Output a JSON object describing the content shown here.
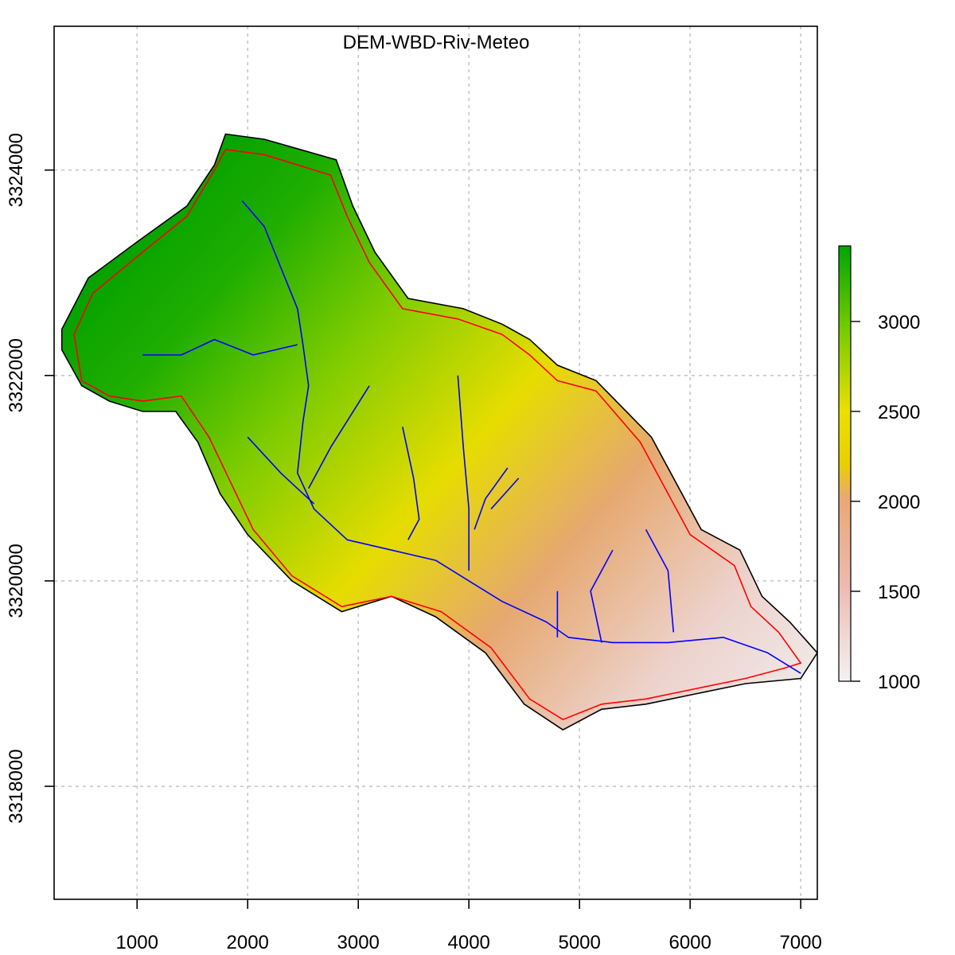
{
  "chart_data": {
    "type": "heatmap",
    "title": "DEM-WBD-Riv-Meteo",
    "xlim": [
      250,
      7150
    ],
    "ylim": [
      3316900,
      3325400
    ],
    "x_ticks": [
      "1000",
      "2000",
      "3000",
      "4000",
      "5000",
      "6000",
      "7000"
    ],
    "y_ticks": [
      "3318000",
      "3320000",
      "3322000",
      "3324000"
    ],
    "grid": true,
    "legend": {
      "placement": "right",
      "range": [
        1000,
        3420
      ],
      "ticks": [
        "1000",
        "1500",
        "2000",
        "2500",
        "3000"
      ],
      "palette": [
        "#f2f2f2",
        "#edbab2",
        "#e8a876",
        "#ebd600",
        "#8fd000",
        "#00a600"
      ]
    },
    "layers": [
      {
        "name": "DEM",
        "color": "#00a600"
      },
      {
        "name": "WBD",
        "color": "#ff0000"
      },
      {
        "name": "Riv",
        "color": "#0000ff"
      }
    ],
    "domain_outline": [
      [
        320,
        3322450
      ],
      [
        560,
        3322950
      ],
      [
        1000,
        3323300
      ],
      [
        1450,
        3323650
      ],
      [
        1700,
        3324050
      ],
      [
        1800,
        3324350
      ],
      [
        2150,
        3324300
      ],
      [
        2800,
        3324100
      ],
      [
        2950,
        3323650
      ],
      [
        3150,
        3323200
      ],
      [
        3450,
        3322750
      ],
      [
        3950,
        3322650
      ],
      [
        4300,
        3322500
      ],
      [
        4550,
        3322350
      ],
      [
        4800,
        3322100
      ],
      [
        5150,
        3321950
      ],
      [
        5650,
        3321400
      ],
      [
        5900,
        3320900
      ],
      [
        6100,
        3320500
      ],
      [
        6450,
        3320300
      ],
      [
        6650,
        3319850
      ],
      [
        6900,
        3319600
      ],
      [
        7150,
        3319300
      ],
      [
        7000,
        3319050
      ],
      [
        6500,
        3319000
      ],
      [
        6050,
        3318900
      ],
      [
        5600,
        3318800
      ],
      [
        5200,
        3318750
      ],
      [
        4850,
        3318550
      ],
      [
        4500,
        3318800
      ],
      [
        4150,
        3319300
      ],
      [
        3700,
        3319650
      ],
      [
        3300,
        3319850
      ],
      [
        2850,
        3319700
      ],
      [
        2400,
        3320000
      ],
      [
        2000,
        3320450
      ],
      [
        1750,
        3320850
      ],
      [
        1550,
        3321350
      ],
      [
        1350,
        3321650
      ],
      [
        1050,
        3321650
      ],
      [
        750,
        3321750
      ],
      [
        500,
        3321900
      ],
      [
        320,
        3322250
      ]
    ],
    "watershed_boundary": [
      [
        430,
        3322400
      ],
      [
        600,
        3322800
      ],
      [
        1050,
        3323200
      ],
      [
        1450,
        3323550
      ],
      [
        1700,
        3324000
      ],
      [
        1800,
        3324200
      ],
      [
        2150,
        3324150
      ],
      [
        2750,
        3323950
      ],
      [
        2900,
        3323550
      ],
      [
        3100,
        3323100
      ],
      [
        3400,
        3322650
      ],
      [
        3900,
        3322550
      ],
      [
        4300,
        3322400
      ],
      [
        4550,
        3322200
      ],
      [
        4800,
        3321950
      ],
      [
        5150,
        3321850
      ],
      [
        5550,
        3321350
      ],
      [
        5800,
        3320850
      ],
      [
        6000,
        3320450
      ],
      [
        6400,
        3320150
      ],
      [
        6550,
        3319750
      ],
      [
        6800,
        3319500
      ],
      [
        7000,
        3319200
      ],
      [
        6850,
        3319150
      ],
      [
        6500,
        3319050
      ],
      [
        6050,
        3318950
      ],
      [
        5600,
        3318850
      ],
      [
        5200,
        3318800
      ],
      [
        4850,
        3318650
      ],
      [
        4550,
        3318850
      ],
      [
        4200,
        3319350
      ],
      [
        3750,
        3319700
      ],
      [
        3300,
        3319850
      ],
      [
        2850,
        3319750
      ],
      [
        2400,
        3320050
      ],
      [
        2050,
        3320500
      ],
      [
        1850,
        3320950
      ],
      [
        1650,
        3321400
      ],
      [
        1400,
        3321800
      ],
      [
        1050,
        3321750
      ],
      [
        750,
        3321800
      ],
      [
        500,
        3321950
      ]
    ],
    "rivers": [
      [
        [
          1950,
          3323700
        ],
        [
          2150,
          3323450
        ],
        [
          2300,
          3323050
        ],
        [
          2450,
          3322650
        ],
        [
          2500,
          3322300
        ],
        [
          2550,
          3321900
        ],
        [
          2500,
          3321550
        ],
        [
          2450,
          3321050
        ],
        [
          2600,
          3320700
        ],
        [
          2900,
          3320400
        ],
        [
          3300,
          3320300
        ],
        [
          3700,
          3320200
        ],
        [
          4000,
          3320000
        ],
        [
          4300,
          3319800
        ],
        [
          4700,
          3319600
        ],
        [
          4900,
          3319450
        ],
        [
          5300,
          3319400
        ],
        [
          5800,
          3319400
        ],
        [
          6300,
          3319450
        ],
        [
          6700,
          3319300
        ],
        [
          7000,
          3319100
        ]
      ],
      [
        [
          1050,
          3322200
        ],
        [
          1400,
          3322200
        ],
        [
          1700,
          3322350
        ],
        [
          2050,
          3322200
        ],
        [
          2450,
          3322300
        ]
      ],
      [
        [
          2000,
          3321400
        ],
        [
          2300,
          3321050
        ],
        [
          2600,
          3320750
        ]
      ],
      [
        [
          3400,
          3321500
        ],
        [
          3500,
          3321000
        ],
        [
          3550,
          3320600
        ],
        [
          3450,
          3320400
        ]
      ],
      [
        [
          3900,
          3322000
        ],
        [
          3950,
          3321300
        ],
        [
          4000,
          3320700
        ],
        [
          4000,
          3320100
        ]
      ],
      [
        [
          4350,
          3321100
        ],
        [
          4150,
          3320800
        ],
        [
          4050,
          3320500
        ]
      ],
      [
        [
          4450,
          3321000
        ],
        [
          4200,
          3320700
        ]
      ],
      [
        [
          5300,
          3320300
        ],
        [
          5100,
          3319900
        ],
        [
          5200,
          3319400
        ]
      ],
      [
        [
          5600,
          3320500
        ],
        [
          5800,
          3320100
        ],
        [
          5850,
          3319500
        ]
      ],
      [
        [
          3100,
          3321900
        ],
        [
          2750,
          3321300
        ],
        [
          2550,
          3320900
        ]
      ],
      [
        [
          4800,
          3319900
        ],
        [
          4800,
          3319450
        ]
      ]
    ]
  }
}
